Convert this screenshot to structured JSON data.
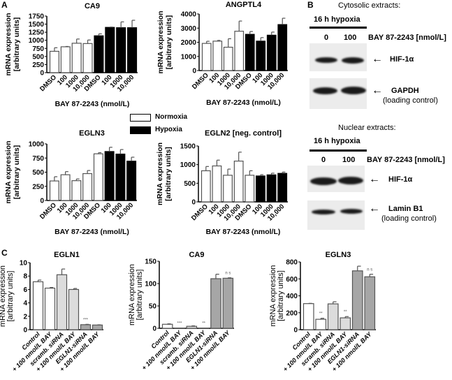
{
  "panels": {
    "a": "A",
    "b": "B",
    "c": "C"
  },
  "legend": {
    "normoxia": "Normoxia",
    "hypoxia": "Hypoxia",
    "normoxia_color": "#ffffff",
    "hypoxia_color": "#000000"
  },
  "blots": {
    "cytosolic": {
      "title": "Cytosolic extracts:",
      "condition": "16 h hypoxia",
      "lane_labels": [
        "0",
        "100"
      ],
      "compound": "BAY 87-2243 [nmol/L]",
      "band1": "HIF-1α",
      "band2": "GAPDH",
      "band2_note": "(loading control)"
    },
    "nuclear": {
      "title": "Nuclear extracts:",
      "condition": "16 h hypoxia",
      "lane_labels": [
        "0",
        "100"
      ],
      "compound": "BAY 87-2243 [nmol/L]",
      "band1": "HIF-1α",
      "band2": "Lamin B1",
      "band2_note": "(loading control)"
    }
  },
  "chart_data": [
    {
      "type": "bar",
      "title": "CA9",
      "ylabel": "mRNA expression\n[arbitrary units]",
      "xlabel": "BAY 87-2243 (nmol/L)",
      "categories": [
        "DMSO",
        "100",
        "1000",
        "10,000",
        "DMSO",
        "100",
        "1000",
        "10,000"
      ],
      "values": [
        660,
        800,
        910,
        900,
        1140,
        1400,
        1390,
        1390
      ],
      "errors": [
        110,
        10,
        130,
        110,
        60,
        10,
        180,
        230
      ],
      "colors": [
        "#ffffff",
        "#ffffff",
        "#ffffff",
        "#ffffff",
        "#000000",
        "#000000",
        "#000000",
        "#000000"
      ],
      "ylim": [
        0,
        1750
      ],
      "yticks": [
        "0",
        "250",
        "500",
        "750",
        "1000",
        "1250",
        "1500",
        "1750"
      ],
      "annotations": []
    },
    {
      "type": "bar",
      "title": "ANGPTL4",
      "ylabel": "mRNA expression\n[arbitrary units]",
      "xlabel": "BAY 87-2243 (nmol/L)",
      "categories": [
        "DMSO",
        "100",
        "1000",
        "10,000",
        "DMSO",
        "100",
        "1000",
        "10,000"
      ],
      "values": [
        1920,
        2080,
        1650,
        2780,
        2560,
        2080,
        2500,
        3250
      ],
      "errors": [
        150,
        50,
        600,
        720,
        200,
        250,
        220,
        450
      ],
      "colors": [
        "#ffffff",
        "#ffffff",
        "#ffffff",
        "#ffffff",
        "#000000",
        "#000000",
        "#000000",
        "#000000"
      ],
      "ylim": [
        0,
        4000
      ],
      "yticks": [
        "0",
        "1000",
        "2000",
        "3000",
        "4000"
      ],
      "annotations": []
    },
    {
      "type": "bar",
      "title": "EGLN3",
      "ylabel": "mRNA expression\n[arbitrary units]",
      "xlabel": "BAY 87-2243 (nmol/L)",
      "categories": [
        "DMSO",
        "100",
        "1000",
        "10,000",
        "DMSO",
        "100",
        "1000",
        "10,000"
      ],
      "values": [
        345,
        455,
        350,
        475,
        825,
        865,
        820,
        695
      ],
      "errors": [
        75,
        55,
        30,
        55,
        20,
        75,
        80,
        70
      ],
      "colors": [
        "#ffffff",
        "#ffffff",
        "#ffffff",
        "#ffffff",
        "#ffffff",
        "#000000",
        "#000000",
        "#000000"
      ],
      "ylim": [
        0,
        1000
      ],
      "yticks": [
        "0",
        "250",
        "500",
        "750",
        "1000"
      ],
      "annotations": []
    },
    {
      "type": "bar",
      "title": "EGLN2 [neg. control]",
      "ylabel": "mRNA expression\n[arbitrary units]",
      "xlabel": "BAY 87-2243 (nmol/L)",
      "categories": [
        "DMSO",
        "100",
        "1000",
        "10,000",
        "DMSO",
        "100",
        "1000",
        "10,000"
      ],
      "values": [
        835,
        965,
        715,
        1095,
        715,
        695,
        725,
        765
      ],
      "errors": [
        115,
        155,
        165,
        240,
        120,
        35,
        45,
        35
      ],
      "colors": [
        "#ffffff",
        "#ffffff",
        "#ffffff",
        "#ffffff",
        "#ffffff",
        "#000000",
        "#000000",
        "#000000"
      ],
      "ylim": [
        0,
        1500
      ],
      "yticks": [
        "0",
        "500",
        "1000",
        "1500"
      ],
      "annotations": []
    },
    {
      "type": "bar",
      "title": "EGLN1",
      "ylabel": "mRNA expression\n[arbitrary units]",
      "xlabel": "",
      "categories": [
        "Control",
        "+ 100 nmol/L BAY",
        "scramb. siRNA",
        "+ 100 nmol/L BAY",
        "EGLN1-siRNA",
        "+ 100 nmol/L BAY"
      ],
      "values": [
        7.15,
        6.2,
        8.2,
        6.0,
        0.75,
        0.7
      ],
      "errors": [
        0.25,
        0.1,
        0.85,
        0.15,
        0.05,
        0.03
      ],
      "colors": [
        "#ffffff",
        "#ffffff",
        "#dcdcdc",
        "#dcdcdc",
        "#a6a6a6",
        "#a6a6a6"
      ],
      "ylim": [
        0,
        10
      ],
      "yticks": [
        "0",
        "2",
        "4",
        "6",
        "8",
        "10"
      ],
      "annotations": [
        "",
        "",
        "",
        "",
        "***",
        ""
      ]
    },
    {
      "type": "bar",
      "title": "CA9",
      "ylabel": "mRNA expression\n[arbitrary units]",
      "xlabel": "",
      "categories": [
        "Control",
        "+ 100 nmol/L BAY",
        "scramb. siRNA",
        "+ 100 nmol/L BAY",
        "EGLN1-siRNA",
        "+ 100 nmol/L BAY"
      ],
      "values": [
        9,
        0.5,
        4.5,
        0.5,
        111,
        112
      ],
      "errors": [
        1,
        0,
        1,
        0,
        10,
        1
      ],
      "colors": [
        "#ffffff",
        "#ffffff",
        "#dcdcdc",
        "#dcdcdc",
        "#a6a6a6",
        "#a6a6a6"
      ],
      "ylim": [
        0,
        150
      ],
      "yticks": [
        "0",
        "50",
        "100",
        "150"
      ],
      "annotations": [
        "",
        "***",
        "",
        "**",
        "",
        "n s"
      ]
    },
    {
      "type": "bar",
      "title": "EGLN3",
      "ylabel": "mRNA expression\n[arbitrary units]",
      "xlabel": "",
      "categories": [
        "Control",
        "+ 100 nmol/L BAY",
        "scramb. siRNA",
        "+ 100 nmol/L BAY",
        "EGLN1-siRNA",
        "+ 100 nmol/L BAY"
      ],
      "values": [
        308,
        123,
        305,
        140,
        695,
        625
      ],
      "errors": [
        3,
        12,
        25,
        15,
        55,
        30
      ],
      "colors": [
        "#ffffff",
        "#ffffff",
        "#dcdcdc",
        "#dcdcdc",
        "#a6a6a6",
        "#a6a6a6"
      ],
      "ylim": [
        0,
        800
      ],
      "yticks": [
        "0",
        "200",
        "400",
        "600",
        "800"
      ],
      "annotations": [
        "",
        "**",
        "",
        "**",
        "",
        "n s"
      ]
    }
  ]
}
